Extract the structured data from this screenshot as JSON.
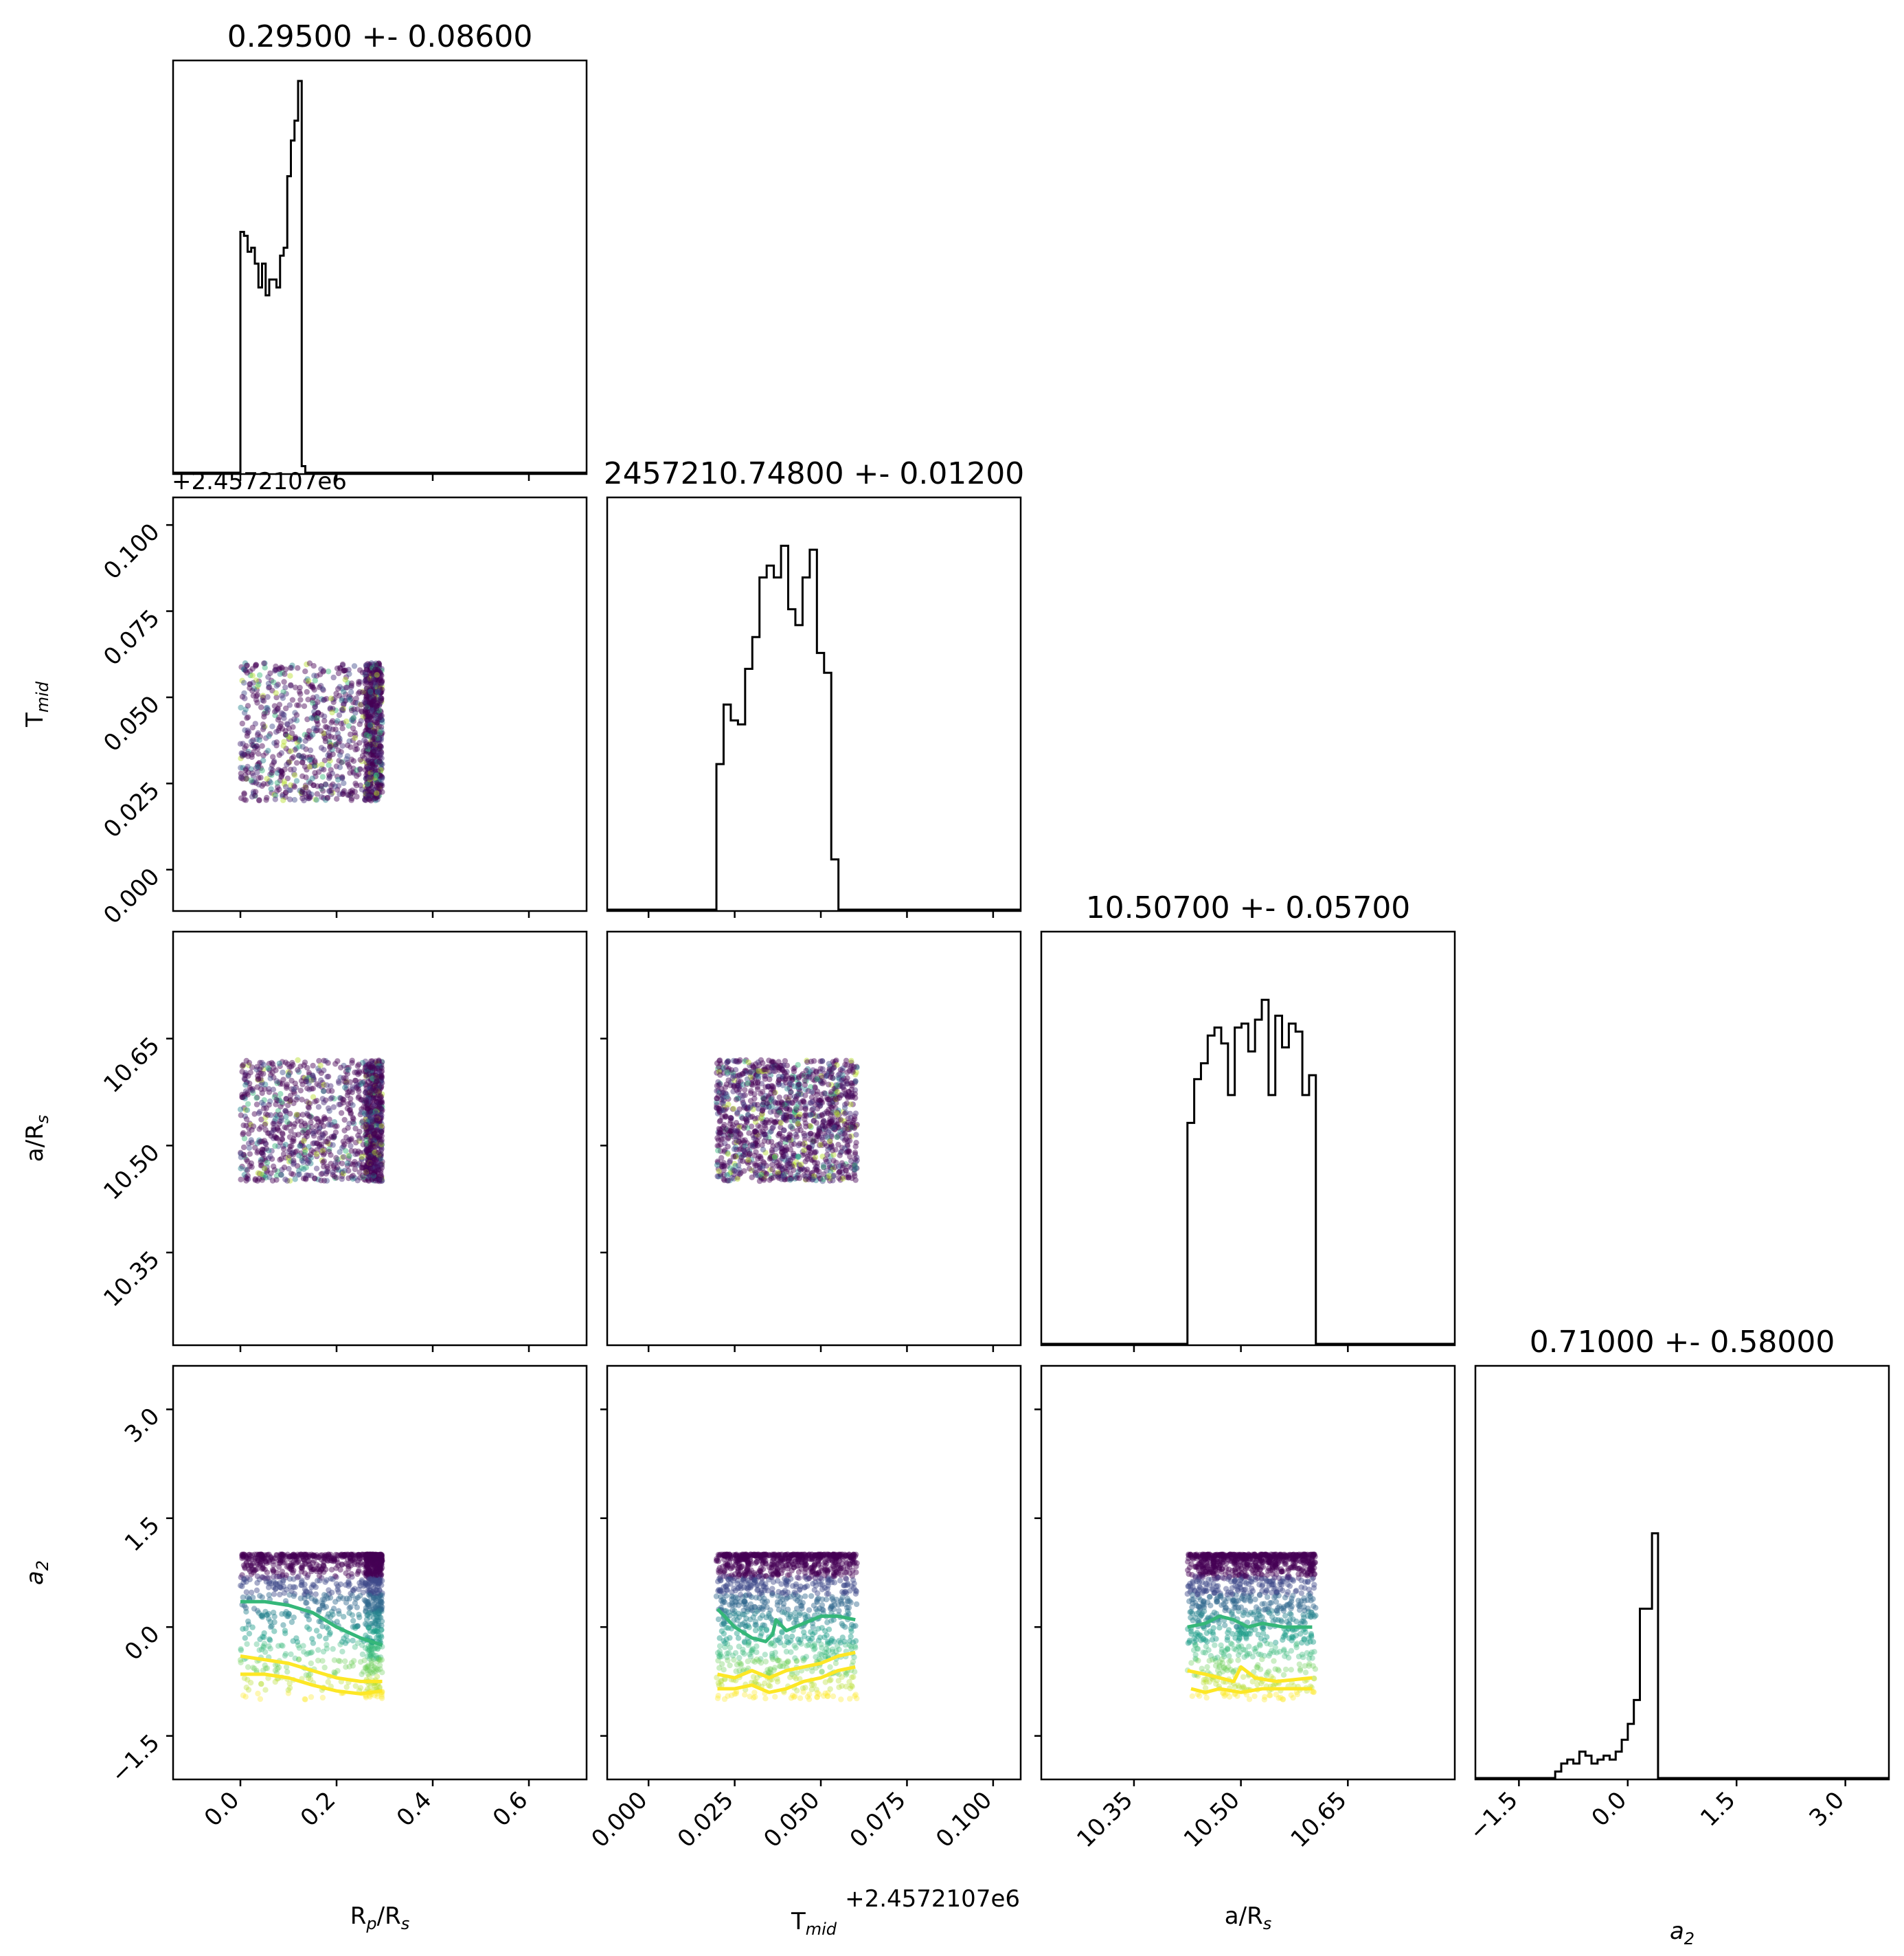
{
  "chart_data": {
    "type": "scatter",
    "plot_kind": "corner-plot",
    "offset_label": "+2.4572107e6",
    "parameters": [
      {
        "key": "rp",
        "label_main": "R",
        "label_sub": "p",
        "label_suffix": "/R",
        "label_sub2": "s",
        "range": [
          -0.14,
          0.72
        ],
        "ticks": [
          0.0,
          0.2,
          0.4,
          0.6
        ],
        "tick_labels": [
          "0.0",
          "0.2",
          "0.4",
          "0.6"
        ],
        "title": "0.29500 +- 0.08600"
      },
      {
        "key": "tmid",
        "label_main": "T",
        "label_sub": "mid",
        "label_suffix": "",
        "label_sub2": "",
        "range": [
          -0.012,
          0.108
        ],
        "ticks": [
          0.0,
          0.025,
          0.05,
          0.075,
          0.1
        ],
        "tick_labels": [
          "0.000",
          "0.025",
          "0.050",
          "0.075",
          "0.100"
        ],
        "title": "2457210.74800 +- 0.01200"
      },
      {
        "key": "ars",
        "label_main": "a/R",
        "label_sub": "s",
        "label_suffix": "",
        "label_sub2": "",
        "range": [
          10.22,
          10.8
        ],
        "ticks": [
          10.35,
          10.5,
          10.65
        ],
        "tick_labels": [
          "10.35",
          "10.50",
          "10.65"
        ],
        "title": "10.50700 +- 0.05700"
      },
      {
        "key": "a2",
        "label_main": "a",
        "label_sub": "2",
        "label_suffix": "",
        "label_sub2": "",
        "italic": true,
        "range": [
          -2.1,
          3.6
        ],
        "ticks": [
          -1.5,
          0.0,
          1.5,
          3.0
        ],
        "tick_labels": [
          "−1.5",
          "0.0",
          "1.5",
          "3.0"
        ],
        "title": "0.71000 +- 0.58000"
      }
    ],
    "histograms": [
      {
        "param": "rp",
        "edges_start": 0.0,
        "bin_width": 0.0075,
        "counts": [
          0.61,
          0.6,
          0.56,
          0.57,
          0.53,
          0.47,
          0.53,
          0.45,
          0.49,
          0.49,
          0.47,
          0.55,
          0.57,
          0.75,
          0.84,
          0.89,
          0.99,
          0.02
        ]
      },
      {
        "param": "tmid",
        "edges_start": 0.0197,
        "bin_width": 0.002083,
        "counts": [
          0.37,
          0.52,
          0.48,
          0.47,
          0.61,
          0.69,
          0.84,
          0.87,
          0.84,
          0.92,
          0.76,
          0.72,
          0.84,
          0.91,
          0.65,
          0.6,
          0.13
        ]
      },
      {
        "param": "ars",
        "edges_start": 10.425,
        "bin_width": 0.00948,
        "counts": [
          0.56,
          0.67,
          0.71,
          0.78,
          0.8,
          0.76,
          0.63,
          0.8,
          0.81,
          0.74,
          0.82,
          0.87,
          0.63,
          0.83,
          0.75,
          0.81,
          0.79,
          0.63,
          0.68
        ]
      },
      {
        "param": "a2",
        "edges_start": -1.0,
        "bin_width": 0.0834,
        "counts": [
          0.02,
          0.04,
          0.05,
          0.04,
          0.07,
          0.06,
          0.04,
          0.05,
          0.06,
          0.05,
          0.07,
          0.1,
          0.14,
          0.2,
          0.43,
          0.43,
          0.62
        ]
      }
    ],
    "scatter_panels": [
      {
        "x": "rp",
        "y": "tmid",
        "x_range": [
          0.0,
          0.295
        ],
        "y_range": [
          0.02,
          0.06
        ],
        "dense_right": true
      },
      {
        "x": "rp",
        "y": "ars",
        "x_range": [
          0.0,
          0.295
        ],
        "y_range": [
          10.45,
          10.62
        ],
        "dense_right": true
      },
      {
        "x": "tmid",
        "y": "ars",
        "x_range": [
          0.0197,
          0.0605
        ],
        "y_range": [
          10.45,
          10.62
        ],
        "dense_right": false
      },
      {
        "x": "rp",
        "y": "a2",
        "x_range": [
          0.0,
          0.295
        ],
        "y_range": [
          -1.0,
          1.0
        ],
        "dense_right": true
      },
      {
        "x": "tmid",
        "y": "a2",
        "x_range": [
          0.0197,
          0.0605
        ],
        "y_range": [
          -1.0,
          1.0
        ],
        "dense_right": false
      },
      {
        "x": "ars",
        "y": "a2",
        "x_range": [
          10.425,
          10.605
        ],
        "y_range": [
          -1.0,
          1.0
        ],
        "dense_right": false
      }
    ],
    "contours": [
      {
        "panel": "rp-a2",
        "color": "#35b779",
        "points": [
          [
            0.0,
            0.35
          ],
          [
            0.05,
            0.35
          ],
          [
            0.1,
            0.3
          ],
          [
            0.15,
            0.2
          ],
          [
            0.2,
            0.0
          ],
          [
            0.25,
            -0.15
          ],
          [
            0.295,
            -0.25
          ]
        ]
      },
      {
        "panel": "rp-a2",
        "color": "#fde725",
        "points": [
          [
            0.0,
            -0.4
          ],
          [
            0.05,
            -0.45
          ],
          [
            0.1,
            -0.5
          ],
          [
            0.15,
            -0.6
          ],
          [
            0.2,
            -0.7
          ],
          [
            0.25,
            -0.75
          ],
          [
            0.295,
            -0.75
          ]
        ]
      },
      {
        "panel": "rp-a2",
        "color": "#fde725",
        "points": [
          [
            0.0,
            -0.65
          ],
          [
            0.05,
            -0.65
          ],
          [
            0.1,
            -0.7
          ],
          [
            0.15,
            -0.8
          ],
          [
            0.2,
            -0.88
          ],
          [
            0.25,
            -0.92
          ],
          [
            0.295,
            -0.88
          ]
        ]
      },
      {
        "panel": "tmid-a2",
        "color": "#35b779",
        "points": [
          [
            0.02,
            0.25
          ],
          [
            0.025,
            0.0
          ],
          [
            0.03,
            -0.15
          ],
          [
            0.034,
            -0.2
          ],
          [
            0.036,
            -0.1
          ],
          [
            0.037,
            0.1
          ],
          [
            0.04,
            -0.05
          ],
          [
            0.045,
            0.05
          ],
          [
            0.05,
            0.15
          ],
          [
            0.055,
            0.15
          ],
          [
            0.06,
            0.1
          ]
        ]
      },
      {
        "panel": "tmid-a2",
        "color": "#fde725",
        "points": [
          [
            0.02,
            -0.65
          ],
          [
            0.025,
            -0.7
          ],
          [
            0.03,
            -0.6
          ],
          [
            0.035,
            -0.7
          ],
          [
            0.04,
            -0.6
          ],
          [
            0.045,
            -0.55
          ],
          [
            0.05,
            -0.5
          ],
          [
            0.055,
            -0.4
          ],
          [
            0.06,
            -0.35
          ]
        ]
      },
      {
        "panel": "tmid-a2",
        "color": "#fde725",
        "points": [
          [
            0.02,
            -0.85
          ],
          [
            0.025,
            -0.85
          ],
          [
            0.03,
            -0.8
          ],
          [
            0.035,
            -0.9
          ],
          [
            0.04,
            -0.85
          ],
          [
            0.045,
            -0.75
          ],
          [
            0.05,
            -0.7
          ],
          [
            0.055,
            -0.6
          ],
          [
            0.06,
            -0.55
          ]
        ]
      },
      {
        "panel": "ars-a2",
        "color": "#35b779",
        "points": [
          [
            10.425,
            0.0
          ],
          [
            10.45,
            0.05
          ],
          [
            10.47,
            0.15
          ],
          [
            10.49,
            0.1
          ],
          [
            10.51,
            0.0
          ],
          [
            10.53,
            0.05
          ],
          [
            10.56,
            0.0
          ],
          [
            10.6,
            0.0
          ]
        ]
      },
      {
        "panel": "ars-a2",
        "color": "#fde725",
        "points": [
          [
            10.425,
            -0.6
          ],
          [
            10.45,
            -0.65
          ],
          [
            10.47,
            -0.7
          ],
          [
            10.49,
            -0.75
          ],
          [
            10.5,
            -0.55
          ],
          [
            10.52,
            -0.7
          ],
          [
            10.55,
            -0.75
          ],
          [
            10.6,
            -0.7
          ]
        ]
      },
      {
        "panel": "ars-a2",
        "color": "#fde725",
        "points": [
          [
            10.43,
            -0.85
          ],
          [
            10.45,
            -0.9
          ],
          [
            10.47,
            -0.85
          ],
          [
            10.5,
            -0.9
          ],
          [
            10.53,
            -0.85
          ],
          [
            10.57,
            -0.85
          ],
          [
            10.6,
            -0.85
          ]
        ]
      }
    ],
    "colors": {
      "histogram": "#000000",
      "viridis": [
        "#440154",
        "#482878",
        "#3e4989",
        "#31688e",
        "#26828e",
        "#1f9e89",
        "#35b779",
        "#6ece58",
        "#b5de2b",
        "#fde725"
      ]
    },
    "grid": false
  }
}
